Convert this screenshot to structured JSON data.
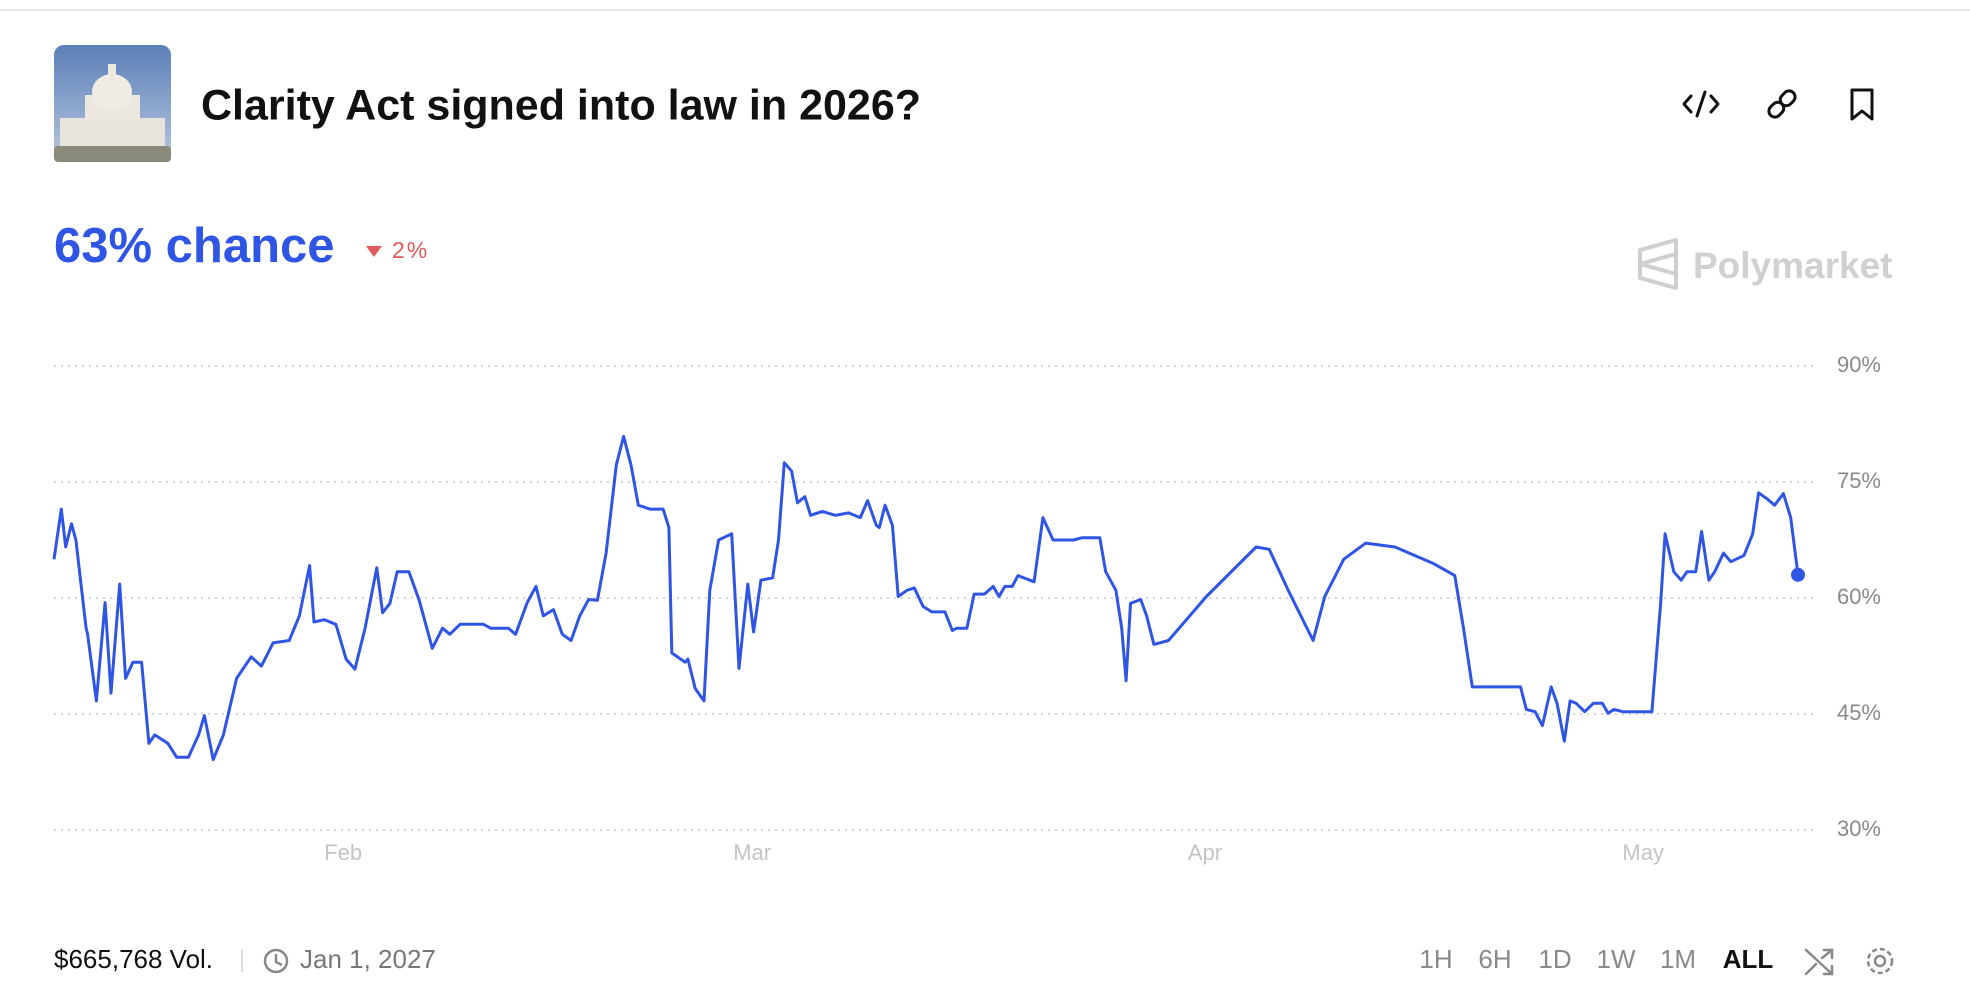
{
  "header": {
    "title": "Clarity Act signed into law in 2026?",
    "chance": "63% chance",
    "change": "2%",
    "watermark": "Polymarket"
  },
  "chart_data": {
    "type": "line",
    "x": [
      12.2,
      12.7,
      13.0,
      13.4,
      13.7,
      14.4,
      14.5,
      15.1,
      15.7,
      16.1,
      16.7,
      17.1,
      17.6,
      18.2,
      18.7,
      19.1,
      20.0,
      20.6,
      21.4,
      22.1,
      22.5,
      23.1,
      23.8,
      24.7,
      25.7,
      26.4,
      27.2,
      28.3,
      29.0,
      29.7,
      30.0,
      30.7,
      31.5,
      32.2,
      32.8,
      33.5,
      34.0,
      34.3,
      34.7,
      35.2,
      35.7,
      36.5,
      37.2,
      38.1,
      38.8,
      39.3,
      40.0,
      41.6,
      42.1,
      43.3,
      43.8,
      44.6,
      45.2,
      45.7,
      46.4,
      47.0,
      47.6,
      48.2,
      48.8,
      49.4,
      50.0,
      50.7,
      51.2,
      51.7,
      52.2,
      53.0,
      53.9,
      54.3,
      54.5,
      55.4,
      55.6,
      56.1,
      56.7,
      57.1,
      57.7,
      58.6,
      59.1,
      59.7,
      60.1,
      60.6,
      61.4,
      61.8,
      62.2,
      62.7,
      63.1,
      63.6,
      64.0,
      64.8,
      65.7,
      66.6,
      67.4,
      67.9,
      68.5,
      68.7,
      69.1,
      69.6,
      70.0,
      70.6,
      71.1,
      71.7,
      72.3,
      73.2,
      73.7,
      74.0,
      74.7,
      75.2,
      75.9,
      76.5,
      76.9,
      77.3,
      77.8,
      78.2,
      78.6,
      79.3,
      79.9,
      80.6,
      82.0,
      82.6,
      83.8,
      84.2,
      84.9,
      85.3,
      85.6,
      85.9,
      86.6,
      87.0,
      87.5,
      88.5,
      91.1,
      94.5,
      95.4,
      96.7,
      98.4,
      99.2,
      100.5,
      102.0,
      104.0,
      106.6,
      108.1,
      108.7,
      109.3,
      112.6,
      113.0,
      113.6,
      114.1,
      114.7,
      115.1,
      115.6,
      116.0,
      116.4,
      117.0,
      117.6,
      118.2,
      118.6,
      119.0,
      119.6,
      121.6,
      122.2,
      122.5,
      123.1,
      123.6,
      124.0,
      124.6,
      125.0,
      125.5,
      125.9,
      126.5,
      127.0,
      127.9,
      128.5,
      128.9,
      129.5,
      130.0,
      130.6,
      131.1,
      131.6
    ],
    "series": [
      {
        "color": "#2f55e4",
        "values": [
          65.0,
          71.5,
          66.6,
          69.6,
          67.5,
          56.1,
          55.3,
          46.7,
          59.4,
          47.7,
          61.8,
          49.6,
          51.7,
          51.7,
          41.2,
          42.3,
          41.2,
          39.4,
          39.4,
          42.3,
          44.8,
          39.1,
          42.3,
          49.6,
          52.4,
          51.2,
          54.2,
          54.5,
          57.7,
          64.2,
          56.9,
          57.2,
          56.6,
          52.1,
          50.8,
          56.1,
          61.0,
          63.9,
          58.1,
          59.3,
          63.4,
          63.4,
          59.7,
          53.5,
          56.1,
          55.3,
          56.6,
          56.6,
          56.1,
          56.1,
          55.3,
          59.4,
          61.5,
          57.7,
          58.5,
          55.3,
          54.5,
          57.7,
          59.8,
          59.7,
          65.8,
          77.2,
          80.9,
          77.2,
          72.0,
          71.5,
          71.5,
          69.1,
          52.9,
          51.7,
          52.1,
          48.3,
          46.7,
          61.0,
          67.5,
          68.3,
          50.9,
          61.8,
          55.6,
          62.3,
          62.6,
          67.5,
          77.5,
          76.4,
          72.3,
          73.1,
          70.7,
          71.2,
          70.7,
          71.0,
          70.4,
          72.6,
          69.4,
          69.1,
          72.0,
          69.4,
          60.2,
          61.0,
          61.3,
          58.9,
          58.2,
          58.2,
          55.8,
          56.1,
          56.1,
          60.5,
          60.5,
          61.5,
          60.2,
          61.5,
          61.5,
          62.9,
          62.6,
          62.1,
          70.4,
          67.5,
          67.5,
          67.8,
          67.8,
          63.4,
          61.0,
          56.1,
          49.3,
          59.3,
          59.8,
          57.7,
          54.0,
          54.5,
          60.2,
          66.6,
          66.3,
          61.0,
          54.5,
          60.2,
          65.0,
          67.1,
          66.6,
          64.5,
          62.9,
          56.1,
          48.5,
          48.5,
          45.6,
          45.3,
          43.5,
          48.5,
          46.4,
          41.5,
          46.7,
          46.4,
          45.3,
          46.4,
          46.4,
          45.1,
          45.6,
          45.3,
          45.3,
          59.4,
          68.3,
          63.4,
          62.3,
          63.4,
          63.4,
          68.6,
          62.3,
          63.4,
          65.8,
          64.7,
          65.5,
          68.3,
          73.6,
          72.8,
          72.0,
          73.5,
          70.4,
          63
        ]
      }
    ],
    "xlim": [
      12.2,
      131.6
    ],
    "xticks": [
      {
        "value": 32,
        "label": "Feb"
      },
      {
        "value": 60,
        "label": "Mar"
      },
      {
        "value": 91,
        "label": "Apr"
      },
      {
        "value": 121,
        "label": "May"
      }
    ],
    "ylim": [
      30,
      90
    ],
    "yticks": [
      {
        "value": 30,
        "label": "30%"
      },
      {
        "value": 45,
        "label": "45%"
      },
      {
        "value": 60,
        "label": "60%"
      },
      {
        "value": 75,
        "label": "75%"
      },
      {
        "value": 90,
        "label": "90%"
      }
    ],
    "grid": true
  },
  "footer": {
    "volume": "$665,768 Vol.",
    "end_date": "Jan 1, 2027",
    "ranges": [
      "1H",
      "6H",
      "1D",
      "1W",
      "1M",
      "ALL"
    ],
    "active_range": 5
  }
}
